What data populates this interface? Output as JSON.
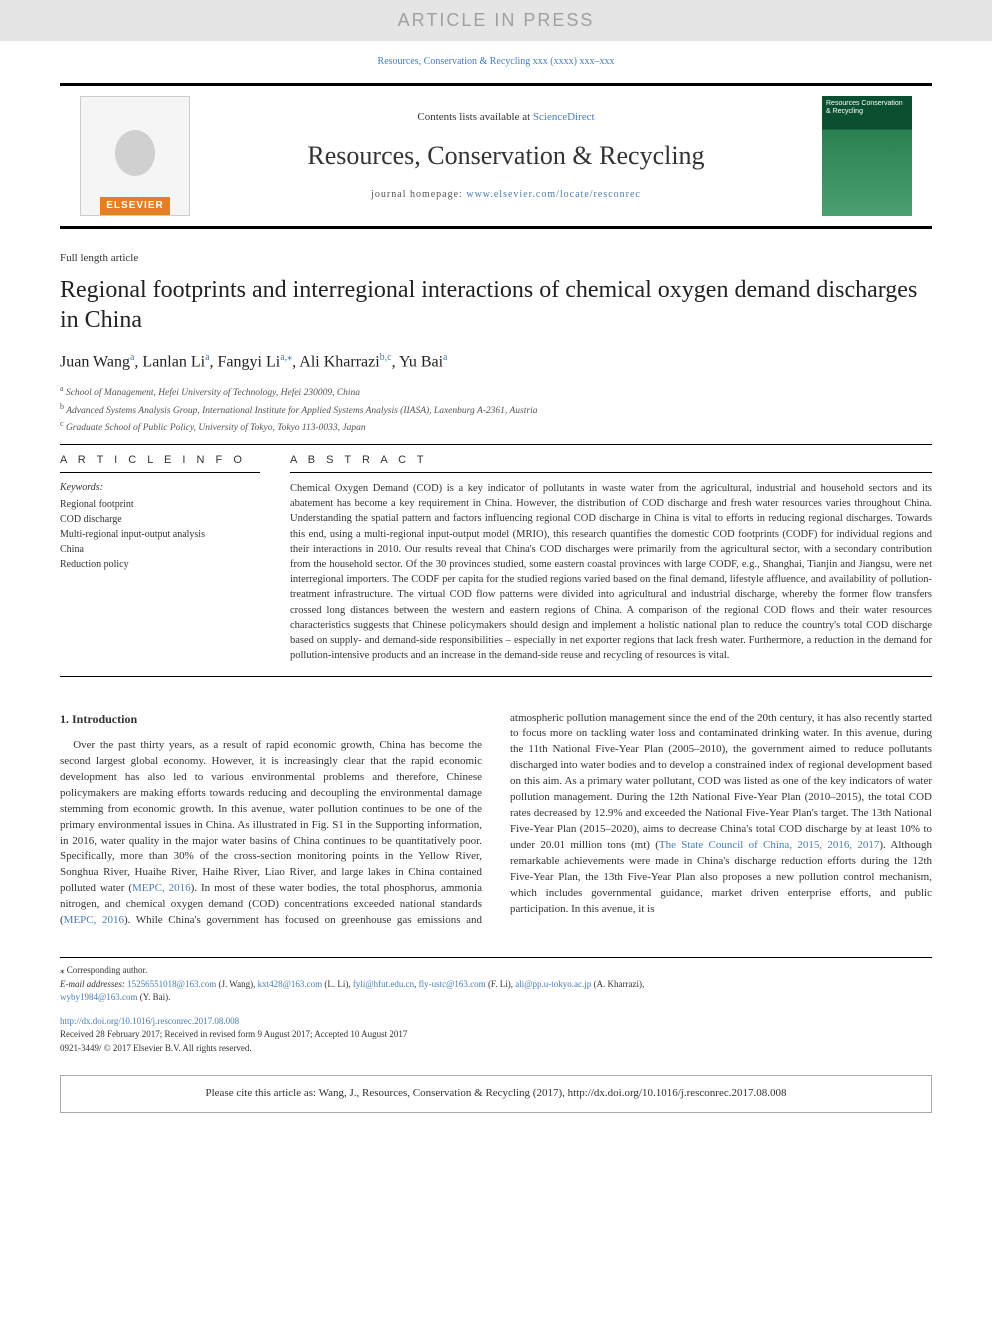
{
  "banner": {
    "text": "ARTICLE IN PRESS"
  },
  "journal_ref": "Resources, Conservation & Recycling xxx (xxxx) xxx–xxx",
  "header": {
    "publisher_name": "ELSEVIER",
    "contents_prefix": "Contents lists available at ",
    "contents_link": "ScienceDirect",
    "journal_name": "Resources, Conservation & Recycling",
    "homepage_prefix": "journal homepage: ",
    "homepage_url": "www.elsevier.com/locate/resconrec",
    "cover_title": "Resources Conservation & Recycling"
  },
  "article": {
    "type": "Full length article",
    "title": "Regional footprints and interregional interactions of chemical oxygen demand discharges in China",
    "authors_html": "Juan Wang{a}, Lanlan Li{a}, Fangyi Li{a,*}, Ali Kharrazi{b,c}, Yu Bai{a}",
    "authors": [
      {
        "name": "Juan Wang",
        "sup": "a"
      },
      {
        "name": "Lanlan Li",
        "sup": "a"
      },
      {
        "name": "Fangyi Li",
        "sup": "a,⁎"
      },
      {
        "name": "Ali Kharrazi",
        "sup": "b,c"
      },
      {
        "name": "Yu Bai",
        "sup": "a"
      }
    ],
    "affiliations": [
      {
        "sup": "a",
        "text": "School of Management, Hefei University of Technology, Hefei 230009, China"
      },
      {
        "sup": "b",
        "text": "Advanced Systems Analysis Group, International Institute for Applied Systems Analysis (IIASA), Laxenburg A-2361, Austria"
      },
      {
        "sup": "c",
        "text": "Graduate School of Public Policy, University of Tokyo, Tokyo 113-0033, Japan"
      }
    ]
  },
  "info": {
    "heading": "A R T I C L E  I N F O",
    "keywords_label": "Keywords:",
    "keywords": [
      "Regional footprint",
      "COD discharge",
      "Multi-regional input-output analysis",
      "China",
      "Reduction policy"
    ]
  },
  "abstract": {
    "heading": "A B S T R A C T",
    "text": "Chemical Oxygen Demand (COD) is a key indicator of pollutants in waste water from the agricultural, industrial and household sectors and its abatement has become a key requirement in China. However, the distribution of COD discharge and fresh water resources varies throughout China. Understanding the spatial pattern and factors influencing regional COD discharge in China is vital to efforts in reducing regional discharges. Towards this end, using a multi-regional input-output model (MRIO), this research quantifies the domestic COD footprints (CODF) for individual regions and their interactions in 2010. Our results reveal that China's COD discharges were primarily from the agricultural sector, with a secondary contribution from the household sector. Of the 30 provinces studied, some eastern coastal provinces with large CODF, e.g., Shanghai, Tianjin and Jiangsu, were net interregional importers. The CODF per capita for the studied regions varied based on the final demand, lifestyle affluence, and availability of pollution-treatment infrastructure. The virtual COD flow patterns were divided into agricultural and industrial discharge, whereby the former flow transfers crossed long distances between the western and eastern regions of China. A comparison of the regional COD flows and their water resources characteristics suggests that Chinese policymakers should design and implement a holistic national plan to reduce the country's total COD discharge based on supply- and demand-side responsibilities – especially in net exporter regions that lack fresh water. Furthermore, a reduction in the demand for pollution-intensive products and an increase in the demand-side reuse and recycling of resources is vital."
  },
  "body": {
    "intro_heading": "1. Introduction",
    "para1": "Over the past thirty years, as a result of rapid economic growth, China has become the second largest global economy. However, it is increasingly clear that the rapid economic development has also led to various environmental problems and therefore, Chinese policymakers are making efforts towards reducing and decoupling the environmental damage stemming from economic growth. In this avenue, water pollution continues to be one of the primary environmental issues in China. As illustrated in Fig. S1 in the Supporting information, in 2016, water quality in the major water basins of China continues to be quantitatively poor. Specifically, more than 30% of the cross-section monitoring points in the Yellow River, Songhua River, Huaihe River, Haihe River, Liao River, and large lakes in China contained polluted water (",
    "cite1": "MEPC, 2016",
    "para1b": "). In most of these water bodies, the total phosphorus, ammonia nitrogen, and chemical oxygen demand (COD) concentrations exceeded national standards (",
    "cite2": "MEPC, 2016",
    "para1c": "). While China's government has ",
    "para2": "focused on greenhouse gas emissions and atmospheric pollution management since the end of the 20th century, it has also recently started to focus more on tackling water loss and contaminated drinking water. In this avenue, during the 11th National Five-Year Plan (2005–2010), the government aimed to reduce pollutants discharged into water bodies and to develop a constrained index of regional development based on this aim. As a primary water pollutant, COD was listed as one of the key indicators of water pollution management. During the 12th National Five-Year Plan (2010–2015), the total COD rates decreased by 12.9% and exceeded the National Five-Year Plan's target. The 13th National Five-Year Plan (2015–2020), aims to decrease China's total COD discharge by at least 10% to under 20.01 million tons (mt) (",
    "cite3": "The State Council of China, 2015, 2016, 2017",
    "para2b": "). Although remarkable achievements were made in China's discharge reduction efforts during the 12th Five-Year Plan, the 13th Five-Year Plan also proposes a new pollution control mechanism, which includes governmental guidance, market driven enterprise efforts, and public participation. In this avenue, it is"
  },
  "footer": {
    "corresponding": "⁎ Corresponding author.",
    "email_label": "E-mail addresses: ",
    "emails": [
      {
        "addr": "15256551018@163.com",
        "who": " (J. Wang), "
      },
      {
        "addr": "kxt428@163.com",
        "who": " (L. Li), "
      },
      {
        "addr": "fyli@hfut.edu.cn",
        "who": ", "
      },
      {
        "addr": "fly-ustc@163.com",
        "who": " (F. Li), "
      },
      {
        "addr": "ali@pp.u-tokyo.ac.jp",
        "who": " (A. Kharrazi),"
      }
    ],
    "email_last": {
      "addr": "wyby1984@163.com",
      "who": " (Y. Bai)."
    },
    "doi": "http://dx.doi.org/10.1016/j.resconrec.2017.08.008",
    "received": "Received 28 February 2017; Received in revised form 9 August 2017; Accepted 10 August 2017",
    "issn": "0921-3449/ © 2017 Elsevier B.V. All rights reserved."
  },
  "citebox": "Please cite this article as: Wang, J., Resources, Conservation & Recycling (2017), http://dx.doi.org/10.1016/j.resconrec.2017.08.008",
  "colors": {
    "link": "#4a7db5",
    "banner_bg": "#e5e5e5",
    "banner_fg": "#a0a0a0",
    "publisher_orange": "#e67e22",
    "cover_green_dark": "#0a5030",
    "cover_green_light": "#4aa070"
  }
}
